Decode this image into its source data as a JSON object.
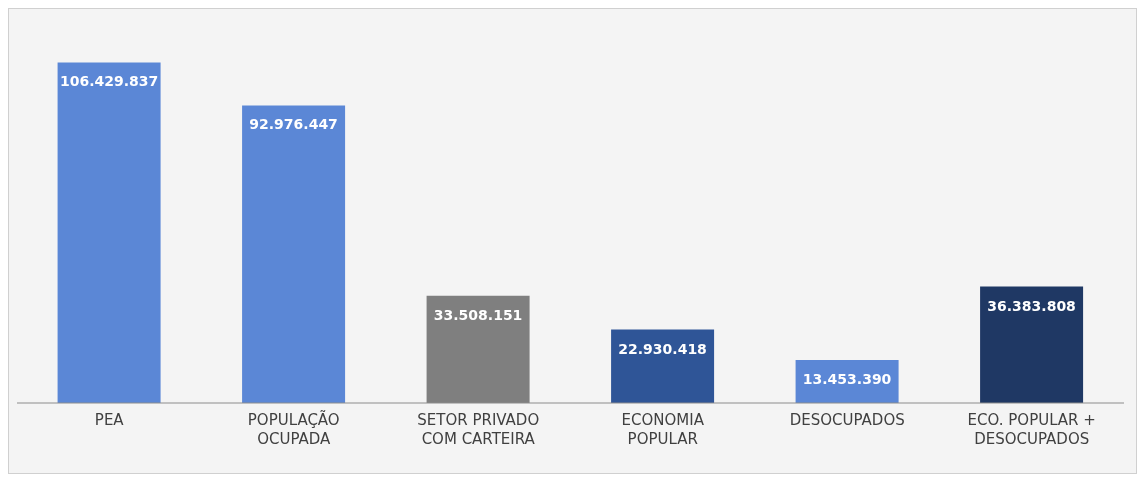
{
  "chart_data": {
    "type": "bar",
    "categories": [
      "PEA",
      "POPULAÇÃO OCUPADA",
      "SETOR PRIVADO COM CARTEIRA",
      "ECONOMIA POPULAR",
      "DESOCUPADOS",
      "ECO. POPULAR + DESOCUPADOS"
    ],
    "values": [
      106429837,
      92976447,
      33508151,
      22930418,
      13453390,
      36383808
    ],
    "colors": [
      "#5b87d6",
      "#5b87d6",
      "#7f7f7f",
      "#2f5597",
      "#5b87d6",
      "#1f3864"
    ],
    "value_labels": [
      "106.429.837",
      "92.976.447",
      "33.508.151",
      "22.930.418",
      "13.453.390",
      "36.383.808"
    ],
    "tick_labels": "x"
  }
}
